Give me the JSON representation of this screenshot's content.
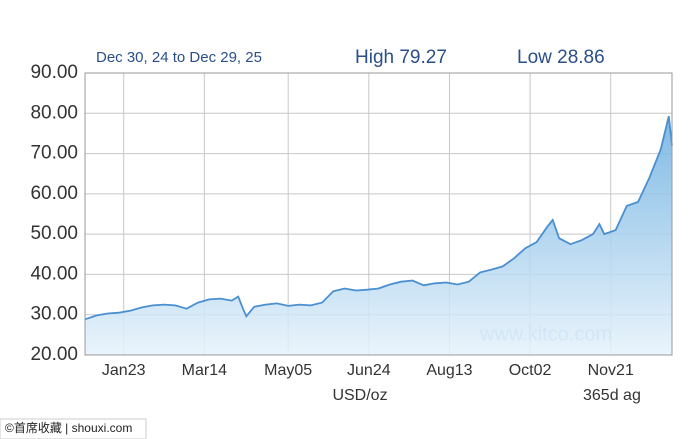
{
  "chart_data": {
    "type": "area",
    "header": {
      "range": "Dec 30, 24 to Dec 29, 25",
      "high": "High 79.27",
      "low": "Low 28.86"
    },
    "x_label": "USD/oz",
    "x_note": "365d ag",
    "watermark": "www.kitco.com",
    "xlim": [
      0,
      364
    ],
    "xticks": [
      {
        "value": 24,
        "label": "Jan23"
      },
      {
        "value": 74,
        "label": "Mar14"
      },
      {
        "value": 126,
        "label": "May05"
      },
      {
        "value": 176,
        "label": "Jun24"
      },
      {
        "value": 226,
        "label": "Aug13"
      },
      {
        "value": 276,
        "label": "Oct02"
      },
      {
        "value": 326,
        "label": "Nov21"
      }
    ],
    "ylim": [
      20,
      90
    ],
    "yticks": [
      {
        "value": 20,
        "label": "20.00"
      },
      {
        "value": 30,
        "label": "30.00"
      },
      {
        "value": 40,
        "label": "40.00"
      },
      {
        "value": 50,
        "label": "50.00"
      },
      {
        "value": 60,
        "label": "60.00"
      },
      {
        "value": 70,
        "label": "70.00"
      },
      {
        "value": 80,
        "label": "80.00"
      },
      {
        "value": 90,
        "label": "90.00"
      }
    ],
    "grid": true,
    "series": [
      {
        "color": "#4a8fd0",
        "x": [
          0,
          7,
          14,
          21,
          28,
          35,
          42,
          49,
          56,
          63,
          70,
          77,
          84,
          91,
          95,
          98,
          100,
          105,
          112,
          119,
          126,
          133,
          140,
          147,
          154,
          161,
          168,
          175,
          182,
          189,
          196,
          203,
          210,
          217,
          224,
          231,
          238,
          245,
          252,
          259,
          266,
          273,
          280,
          287,
          290,
          294,
          301,
          308,
          315,
          319,
          322,
          329,
          336,
          343,
          350,
          357,
          362,
          364
        ],
        "values": [
          28.86,
          29.8,
          30.3,
          30.5,
          31.0,
          31.8,
          32.3,
          32.5,
          32.3,
          31.5,
          33.0,
          33.8,
          34.0,
          33.5,
          34.5,
          31.5,
          29.6,
          32.0,
          32.5,
          32.8,
          32.2,
          32.5,
          32.3,
          33.0,
          35.8,
          36.5,
          36.0,
          36.2,
          36.5,
          37.5,
          38.2,
          38.5,
          37.3,
          37.8,
          38.0,
          37.5,
          38.2,
          40.5,
          41.2,
          42.0,
          44.0,
          46.5,
          48.0,
          52.0,
          53.5,
          49.0,
          47.5,
          48.5,
          50.0,
          52.5,
          50.0,
          51.0,
          57.0,
          58.0,
          64.0,
          71.0,
          79.27,
          72.0
        ]
      }
    ]
  },
  "footer": "©首席收藏 | shouxi.com"
}
